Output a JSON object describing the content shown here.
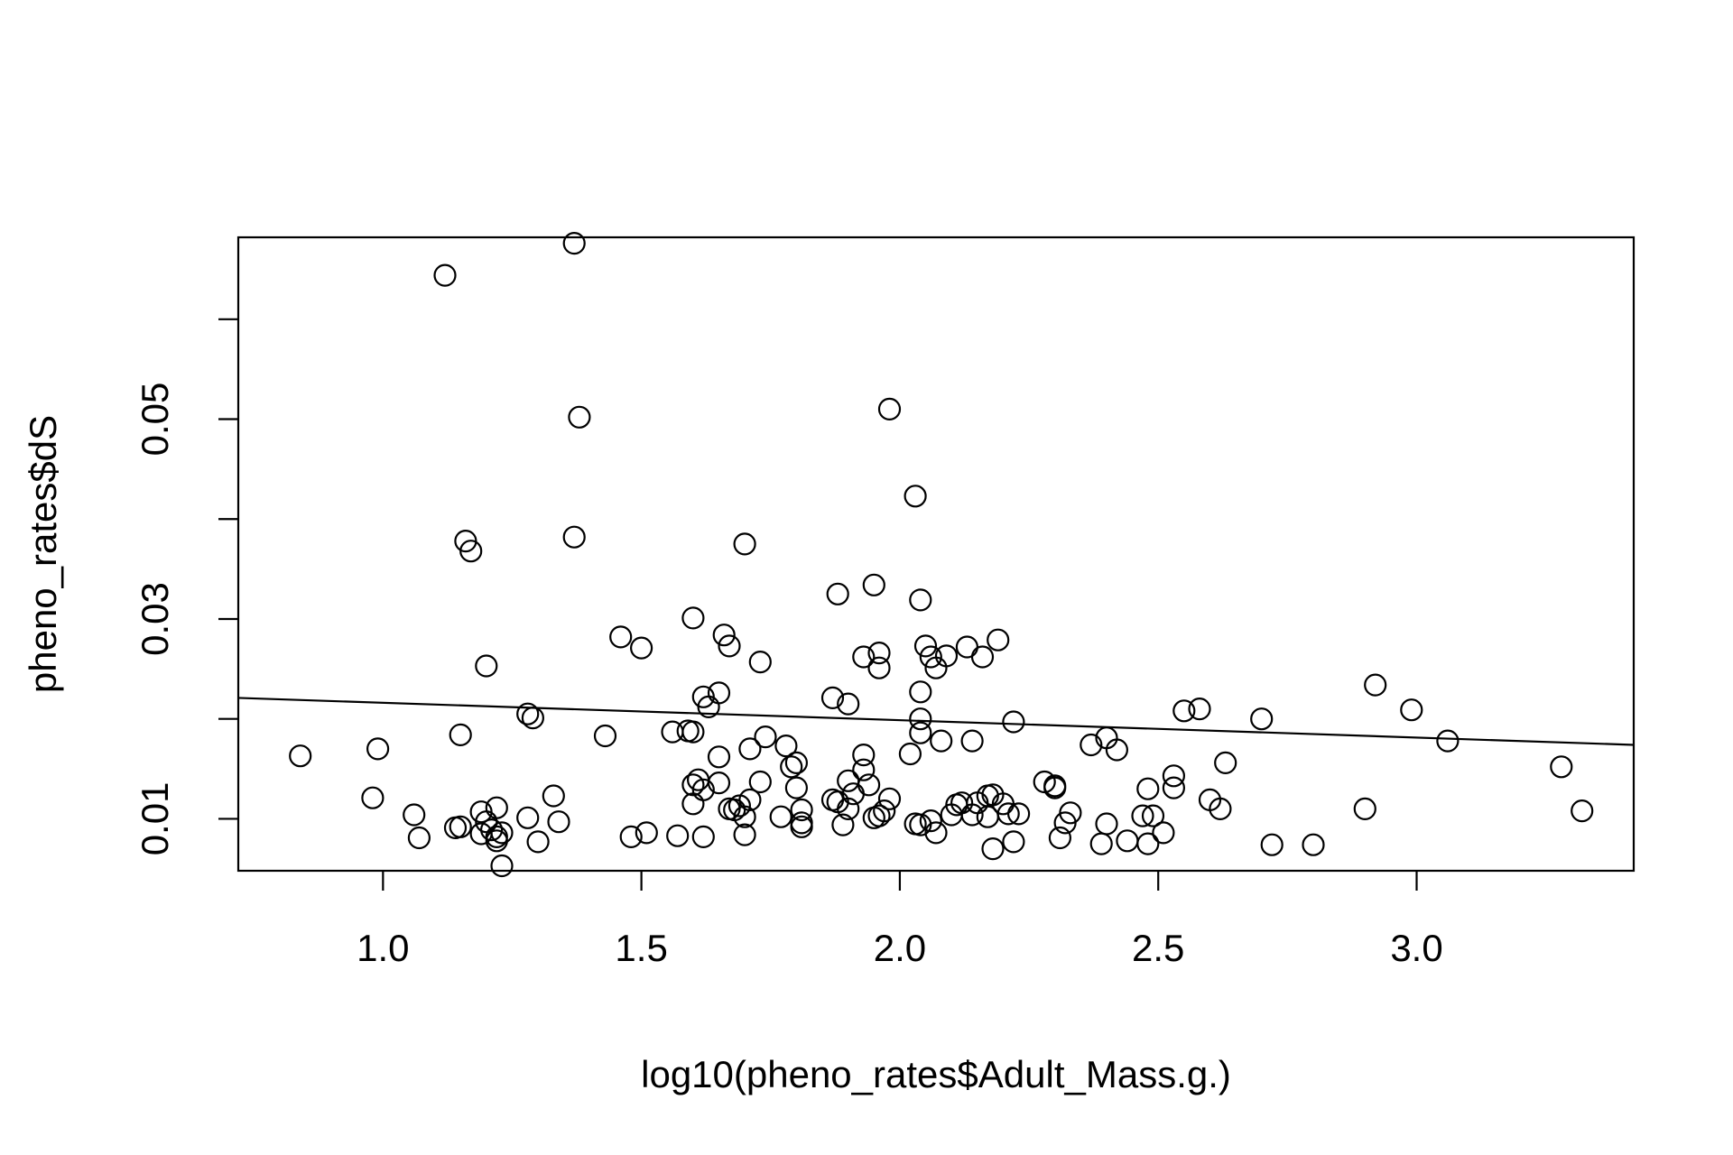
{
  "chart_data": {
    "type": "scatter",
    "title": "",
    "xlabel": "log10(pheno_rates$Adult_Mass.g.)",
    "ylabel": "pheno_rates$dS",
    "xlim": [
      0.72,
      3.42
    ],
    "ylim": [
      0.0048,
      0.0682
    ],
    "x_ticks": [
      1.0,
      1.5,
      2.0,
      2.5,
      3.0
    ],
    "x_tick_labels": [
      "1.0",
      "1.5",
      "2.0",
      "2.5",
      "3.0"
    ],
    "y_ticks": [
      0.01,
      0.02,
      0.03,
      0.04,
      0.05,
      0.06
    ],
    "y_tick_labels": [
      "0.01",
      "",
      "0.03",
      "",
      "0.05",
      ""
    ],
    "grid": false,
    "legend": "none",
    "marker": "open-circle",
    "colors": {
      "points": "#000000",
      "line": "#000000",
      "frame": "#000000",
      "background": "#ffffff"
    },
    "regression_line": {
      "x": [
        0.72,
        3.42
      ],
      "y": [
        0.0221,
        0.0174
      ]
    },
    "points": [
      [
        0.84,
        0.0163
      ],
      [
        0.98,
        0.0121
      ],
      [
        0.99,
        0.017
      ],
      [
        1.06,
        0.0104
      ],
      [
        1.07,
        0.0081
      ],
      [
        1.12,
        0.0644
      ],
      [
        1.14,
        0.0091
      ],
      [
        1.15,
        0.0092
      ],
      [
        1.15,
        0.0184
      ],
      [
        1.16,
        0.0378
      ],
      [
        1.17,
        0.0368
      ],
      [
        1.19,
        0.0107
      ],
      [
        1.19,
        0.0085
      ],
      [
        1.2,
        0.0253
      ],
      [
        1.2,
        0.0097
      ],
      [
        1.21,
        0.0089
      ],
      [
        1.22,
        0.0111
      ],
      [
        1.22,
        0.0082
      ],
      [
        1.22,
        0.0078
      ],
      [
        1.23,
        0.0086
      ],
      [
        1.23,
        0.0053
      ],
      [
        1.28,
        0.0101
      ],
      [
        1.28,
        0.0205
      ],
      [
        1.29,
        0.0201
      ],
      [
        1.3,
        0.0077
      ],
      [
        1.33,
        0.0123
      ],
      [
        1.34,
        0.0097
      ],
      [
        1.37,
        0.0676
      ],
      [
        1.37,
        0.0382
      ],
      [
        1.38,
        0.0502
      ],
      [
        1.43,
        0.0183
      ],
      [
        1.46,
        0.0282
      ],
      [
        1.48,
        0.0082
      ],
      [
        1.5,
        0.0271
      ],
      [
        1.51,
        0.0086
      ],
      [
        1.56,
        0.0187
      ],
      [
        1.57,
        0.0083
      ],
      [
        1.59,
        0.0188
      ],
      [
        1.6,
        0.0187
      ],
      [
        1.6,
        0.0301
      ],
      [
        1.6,
        0.0134
      ],
      [
        1.6,
        0.0115
      ],
      [
        1.61,
        0.0139
      ],
      [
        1.62,
        0.0082
      ],
      [
        1.62,
        0.0222
      ],
      [
        1.62,
        0.0129
      ],
      [
        1.63,
        0.0212
      ],
      [
        1.65,
        0.0226
      ],
      [
        1.65,
        0.0162
      ],
      [
        1.65,
        0.0136
      ],
      [
        1.66,
        0.0284
      ],
      [
        1.67,
        0.0273
      ],
      [
        1.67,
        0.011
      ],
      [
        1.68,
        0.0109
      ],
      [
        1.69,
        0.0113
      ],
      [
        1.7,
        0.0102
      ],
      [
        1.7,
        0.0084
      ],
      [
        1.7,
        0.0375
      ],
      [
        1.71,
        0.017
      ],
      [
        1.71,
        0.0119
      ],
      [
        1.73,
        0.0257
      ],
      [
        1.73,
        0.0137
      ],
      [
        1.74,
        0.0182
      ],
      [
        1.77,
        0.0102
      ],
      [
        1.78,
        0.0173
      ],
      [
        1.79,
        0.0152
      ],
      [
        1.8,
        0.0156
      ],
      [
        1.8,
        0.0131
      ],
      [
        1.81,
        0.0096
      ],
      [
        1.81,
        0.0109
      ],
      [
        1.81,
        0.0092
      ],
      [
        1.87,
        0.0221
      ],
      [
        1.87,
        0.0119
      ],
      [
        1.88,
        0.0325
      ],
      [
        1.88,
        0.0117
      ],
      [
        1.89,
        0.0094
      ],
      [
        1.9,
        0.0138
      ],
      [
        1.9,
        0.0215
      ],
      [
        1.9,
        0.011
      ],
      [
        1.91,
        0.0125
      ],
      [
        1.93,
        0.0164
      ],
      [
        1.93,
        0.0262
      ],
      [
        1.93,
        0.0149
      ],
      [
        1.94,
        0.0134
      ],
      [
        1.95,
        0.0334
      ],
      [
        1.95,
        0.0101
      ],
      [
        1.96,
        0.0266
      ],
      [
        1.96,
        0.0251
      ],
      [
        1.96,
        0.0103
      ],
      [
        1.97,
        0.0108
      ],
      [
        1.98,
        0.012
      ],
      [
        1.98,
        0.051
      ],
      [
        2.02,
        0.0165
      ],
      [
        2.03,
        0.0095
      ],
      [
        2.03,
        0.0423
      ],
      [
        2.04,
        0.0094
      ],
      [
        2.04,
        0.0319
      ],
      [
        2.04,
        0.0227
      ],
      [
        2.04,
        0.02
      ],
      [
        2.04,
        0.0186
      ],
      [
        2.05,
        0.0273
      ],
      [
        2.06,
        0.0098
      ],
      [
        2.06,
        0.0262
      ],
      [
        2.07,
        0.0251
      ],
      [
        2.07,
        0.0086
      ],
      [
        2.08,
        0.0178
      ],
      [
        2.09,
        0.0263
      ],
      [
        2.1,
        0.0104
      ],
      [
        2.11,
        0.0114
      ],
      [
        2.12,
        0.0116
      ],
      [
        2.13,
        0.0272
      ],
      [
        2.14,
        0.0104
      ],
      [
        2.14,
        0.0178
      ],
      [
        2.15,
        0.0116
      ],
      [
        2.16,
        0.0262
      ],
      [
        2.17,
        0.0102
      ],
      [
        2.17,
        0.0123
      ],
      [
        2.18,
        0.007
      ],
      [
        2.18,
        0.0124
      ],
      [
        2.19,
        0.0279
      ],
      [
        2.2,
        0.0115
      ],
      [
        2.21,
        0.0105
      ],
      [
        2.22,
        0.0077
      ],
      [
        2.22,
        0.0197
      ],
      [
        2.23,
        0.0105
      ],
      [
        2.28,
        0.0137
      ],
      [
        2.3,
        0.0133
      ],
      [
        2.3,
        0.0131
      ],
      [
        2.31,
        0.0081
      ],
      [
        2.32,
        0.0096
      ],
      [
        2.33,
        0.0106
      ],
      [
        2.37,
        0.0174
      ],
      [
        2.39,
        0.0075
      ],
      [
        2.4,
        0.0095
      ],
      [
        2.4,
        0.0181
      ],
      [
        2.42,
        0.0169
      ],
      [
        2.44,
        0.0078
      ],
      [
        2.47,
        0.0103
      ],
      [
        2.48,
        0.013
      ],
      [
        2.48,
        0.0075
      ],
      [
        2.49,
        0.0103
      ],
      [
        2.51,
        0.0086
      ],
      [
        2.53,
        0.0131
      ],
      [
        2.53,
        0.0143
      ],
      [
        2.55,
        0.0208
      ],
      [
        2.58,
        0.021
      ],
      [
        2.6,
        0.0119
      ],
      [
        2.62,
        0.011
      ],
      [
        2.63,
        0.0156
      ],
      [
        2.7,
        0.02
      ],
      [
        2.72,
        0.0074
      ],
      [
        2.8,
        0.0074
      ],
      [
        2.9,
        0.011
      ],
      [
        2.92,
        0.0234
      ],
      [
        2.99,
        0.0209
      ],
      [
        3.06,
        0.0178
      ],
      [
        3.28,
        0.0152
      ],
      [
        3.32,
        0.0108
      ]
    ]
  }
}
